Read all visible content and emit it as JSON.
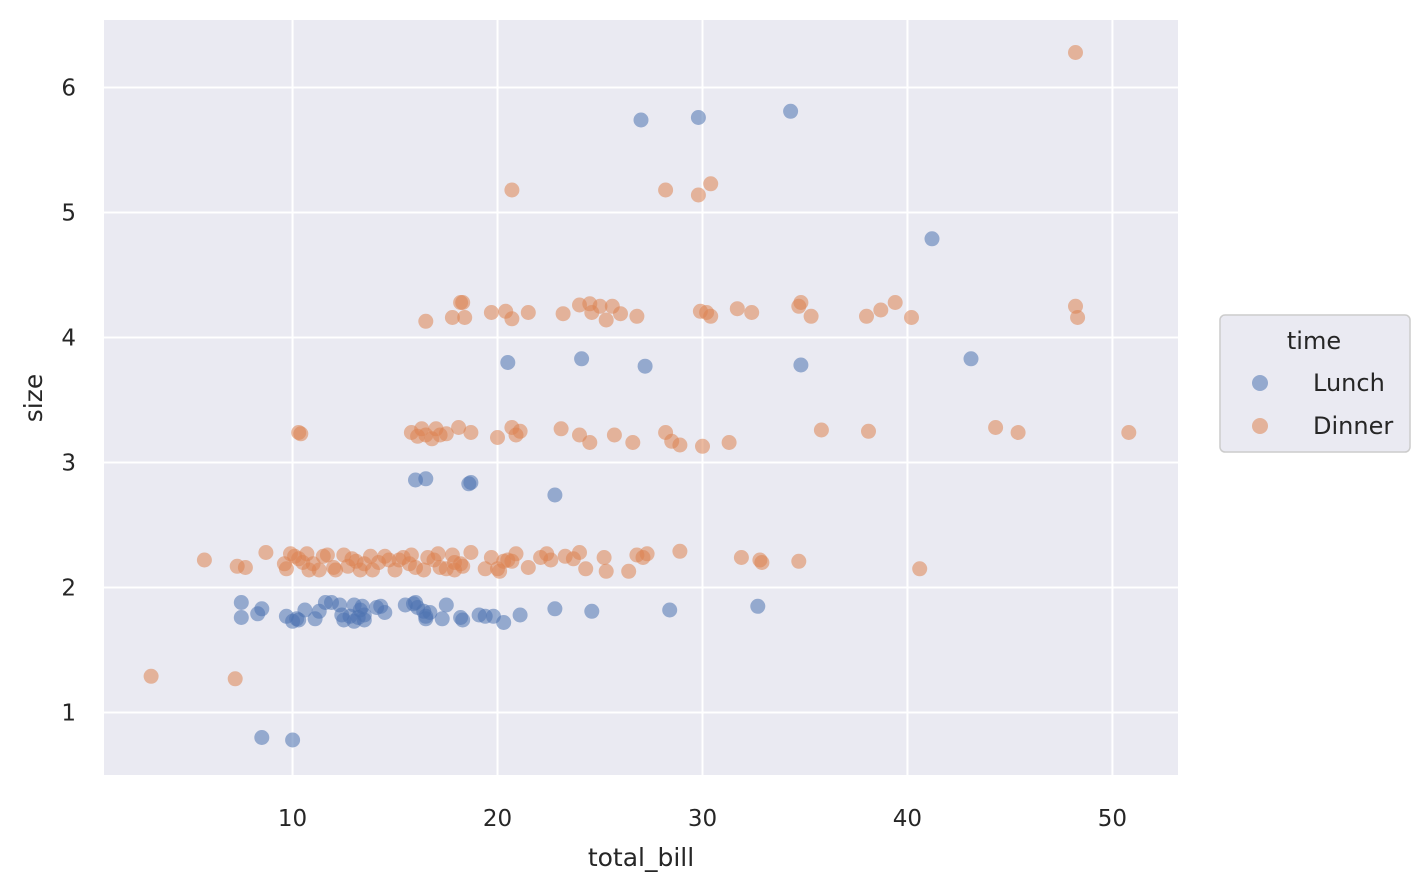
{
  "chart_data": {
    "type": "scatter",
    "xlabel": "total_bill",
    "ylabel": "size",
    "xlim": [
      0.8,
      53.2
    ],
    "ylim": [
      0.5,
      6.54
    ],
    "xticks": [
      10,
      20,
      30,
      40,
      50
    ],
    "yticks": [
      1,
      2,
      3,
      4,
      5,
      6
    ],
    "grid": true,
    "legend": {
      "title": "time",
      "placement": "right"
    },
    "series": [
      {
        "name": "Lunch",
        "color": "#4c72b0",
        "points": [
          [
            8.5,
            0.8
          ],
          [
            10.0,
            0.78
          ],
          [
            7.5,
            1.88
          ],
          [
            7.5,
            1.76
          ],
          [
            8.3,
            1.79
          ],
          [
            8.5,
            1.83
          ],
          [
            9.7,
            1.77
          ],
          [
            10.0,
            1.73
          ],
          [
            10.2,
            1.75
          ],
          [
            10.3,
            1.74
          ],
          [
            10.6,
            1.82
          ],
          [
            11.1,
            1.75
          ],
          [
            11.3,
            1.81
          ],
          [
            11.6,
            1.88
          ],
          [
            11.9,
            1.88
          ],
          [
            12.3,
            1.86
          ],
          [
            12.4,
            1.78
          ],
          [
            12.5,
            1.74
          ],
          [
            12.8,
            1.77
          ],
          [
            13.0,
            1.86
          ],
          [
            13.0,
            1.73
          ],
          [
            13.2,
            1.76
          ],
          [
            13.3,
            1.82
          ],
          [
            13.4,
            1.85
          ],
          [
            13.5,
            1.78
          ],
          [
            13.5,
            1.74
          ],
          [
            14.1,
            1.84
          ],
          [
            14.3,
            1.85
          ],
          [
            14.5,
            1.8
          ],
          [
            15.5,
            1.86
          ],
          [
            15.9,
            1.87
          ],
          [
            16.0,
            1.88
          ],
          [
            16.1,
            1.84
          ],
          [
            16.4,
            1.81
          ],
          [
            16.5,
            1.77
          ],
          [
            16.5,
            1.75
          ],
          [
            16.7,
            1.8
          ],
          [
            17.3,
            1.75
          ],
          [
            17.5,
            1.86
          ],
          [
            18.2,
            1.76
          ],
          [
            18.3,
            1.74
          ],
          [
            19.1,
            1.78
          ],
          [
            19.4,
            1.77
          ],
          [
            19.8,
            1.77
          ],
          [
            20.3,
            1.72
          ],
          [
            21.1,
            1.78
          ],
          [
            22.8,
            1.83
          ],
          [
            24.6,
            1.81
          ],
          [
            28.4,
            1.82
          ],
          [
            32.7,
            1.85
          ],
          [
            16.0,
            2.86
          ],
          [
            16.5,
            2.87
          ],
          [
            18.6,
            2.83
          ],
          [
            18.7,
            2.84
          ],
          [
            22.8,
            2.74
          ],
          [
            20.5,
            3.8
          ],
          [
            24.1,
            3.83
          ],
          [
            27.2,
            3.77
          ],
          [
            34.8,
            3.78
          ],
          [
            43.1,
            3.83
          ],
          [
            41.2,
            4.79
          ],
          [
            27.0,
            5.74
          ],
          [
            29.8,
            5.76
          ],
          [
            34.3,
            5.81
          ]
        ]
      },
      {
        "name": "Dinner",
        "color": "#dd8452",
        "points": [
          [
            3.1,
            1.29
          ],
          [
            7.2,
            1.27
          ],
          [
            5.7,
            2.22
          ],
          [
            7.3,
            2.17
          ],
          [
            7.7,
            2.16
          ],
          [
            8.7,
            2.28
          ],
          [
            9.6,
            2.19
          ],
          [
            9.7,
            2.15
          ],
          [
            9.9,
            2.27
          ],
          [
            10.1,
            2.25
          ],
          [
            10.3,
            2.23
          ],
          [
            10.5,
            2.2
          ],
          [
            10.7,
            2.27
          ],
          [
            10.8,
            2.14
          ],
          [
            11.0,
            2.19
          ],
          [
            11.3,
            2.14
          ],
          [
            11.5,
            2.25
          ],
          [
            11.7,
            2.26
          ],
          [
            12.0,
            2.16
          ],
          [
            12.1,
            2.14
          ],
          [
            12.5,
            2.26
          ],
          [
            12.7,
            2.17
          ],
          [
            12.9,
            2.23
          ],
          [
            13.1,
            2.21
          ],
          [
            13.3,
            2.14
          ],
          [
            13.5,
            2.19
          ],
          [
            13.8,
            2.25
          ],
          [
            13.9,
            2.14
          ],
          [
            14.2,
            2.2
          ],
          [
            14.5,
            2.25
          ],
          [
            14.7,
            2.22
          ],
          [
            15.0,
            2.14
          ],
          [
            15.2,
            2.22
          ],
          [
            15.4,
            2.24
          ],
          [
            15.7,
            2.19
          ],
          [
            15.8,
            2.26
          ],
          [
            16.0,
            2.16
          ],
          [
            16.4,
            2.14
          ],
          [
            16.6,
            2.24
          ],
          [
            16.9,
            2.22
          ],
          [
            17.1,
            2.27
          ],
          [
            17.2,
            2.16
          ],
          [
            17.5,
            2.15
          ],
          [
            17.8,
            2.26
          ],
          [
            17.9,
            2.2
          ],
          [
            17.9,
            2.14
          ],
          [
            18.2,
            2.19
          ],
          [
            18.3,
            2.17
          ],
          [
            18.7,
            2.28
          ],
          [
            19.4,
            2.15
          ],
          [
            19.7,
            2.24
          ],
          [
            20.0,
            2.15
          ],
          [
            20.1,
            2.13
          ],
          [
            20.3,
            2.21
          ],
          [
            20.5,
            2.22
          ],
          [
            20.7,
            2.21
          ],
          [
            20.9,
            2.27
          ],
          [
            21.5,
            2.16
          ],
          [
            22.1,
            2.24
          ],
          [
            22.4,
            2.27
          ],
          [
            22.6,
            2.22
          ],
          [
            23.3,
            2.25
          ],
          [
            23.7,
            2.23
          ],
          [
            24.0,
            2.28
          ],
          [
            24.3,
            2.15
          ],
          [
            25.2,
            2.24
          ],
          [
            25.3,
            2.13
          ],
          [
            26.4,
            2.13
          ],
          [
            26.8,
            2.26
          ],
          [
            27.1,
            2.24
          ],
          [
            27.3,
            2.27
          ],
          [
            28.9,
            2.29
          ],
          [
            31.9,
            2.24
          ],
          [
            32.8,
            2.22
          ],
          [
            32.9,
            2.2
          ],
          [
            34.7,
            2.21
          ],
          [
            40.6,
            2.15
          ],
          [
            10.3,
            3.24
          ],
          [
            10.4,
            3.23
          ],
          [
            15.8,
            3.24
          ],
          [
            16.1,
            3.21
          ],
          [
            16.3,
            3.27
          ],
          [
            16.5,
            3.22
          ],
          [
            16.8,
            3.19
          ],
          [
            17.0,
            3.27
          ],
          [
            17.2,
            3.22
          ],
          [
            17.5,
            3.23
          ],
          [
            18.1,
            3.28
          ],
          [
            18.7,
            3.24
          ],
          [
            20.0,
            3.2
          ],
          [
            20.7,
            3.28
          ],
          [
            20.9,
            3.22
          ],
          [
            21.1,
            3.25
          ],
          [
            23.1,
            3.27
          ],
          [
            24.0,
            3.22
          ],
          [
            24.5,
            3.16
          ],
          [
            25.7,
            3.22
          ],
          [
            26.6,
            3.16
          ],
          [
            28.2,
            3.24
          ],
          [
            28.5,
            3.17
          ],
          [
            28.9,
            3.14
          ],
          [
            30.0,
            3.13
          ],
          [
            31.3,
            3.16
          ],
          [
            35.8,
            3.26
          ],
          [
            38.1,
            3.25
          ],
          [
            44.3,
            3.28
          ],
          [
            45.4,
            3.24
          ],
          [
            50.8,
            3.24
          ],
          [
            16.5,
            4.13
          ],
          [
            17.8,
            4.16
          ],
          [
            18.2,
            4.28
          ],
          [
            18.3,
            4.28
          ],
          [
            18.4,
            4.16
          ],
          [
            19.7,
            4.2
          ],
          [
            20.4,
            4.21
          ],
          [
            20.7,
            4.15
          ],
          [
            21.5,
            4.2
          ],
          [
            23.2,
            4.19
          ],
          [
            24.0,
            4.26
          ],
          [
            24.5,
            4.27
          ],
          [
            24.6,
            4.2
          ],
          [
            25.0,
            4.25
          ],
          [
            25.3,
            4.14
          ],
          [
            25.6,
            4.25
          ],
          [
            26.0,
            4.19
          ],
          [
            26.8,
            4.17
          ],
          [
            29.9,
            4.21
          ],
          [
            30.2,
            4.2
          ],
          [
            30.4,
            4.17
          ],
          [
            31.7,
            4.23
          ],
          [
            32.4,
            4.2
          ],
          [
            34.7,
            4.25
          ],
          [
            34.8,
            4.28
          ],
          [
            35.3,
            4.17
          ],
          [
            38.0,
            4.17
          ],
          [
            38.7,
            4.22
          ],
          [
            39.4,
            4.28
          ],
          [
            40.2,
            4.16
          ],
          [
            48.2,
            4.25
          ],
          [
            48.3,
            4.16
          ],
          [
            20.7,
            5.18
          ],
          [
            28.2,
            5.18
          ],
          [
            29.8,
            5.14
          ],
          [
            30.4,
            5.23
          ],
          [
            48.2,
            6.28
          ]
        ]
      }
    ]
  }
}
